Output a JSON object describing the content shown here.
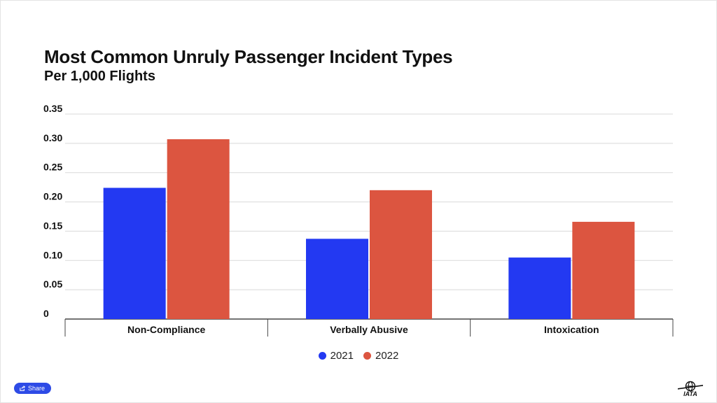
{
  "chart_data": {
    "type": "bar",
    "title": "Most Common Unruly Passenger Incident Types",
    "subtitle": "Per 1,000 Flights",
    "categories": [
      "Non-Compliance",
      "Verbally Abusive",
      "Intoxication"
    ],
    "series": [
      {
        "name": "2021",
        "color": "#2339f2",
        "values": [
          0.224,
          0.137,
          0.105
        ]
      },
      {
        "name": "2022",
        "color": "#dc5540",
        "values": [
          0.307,
          0.22,
          0.166
        ]
      }
    ],
    "ylim": [
      0,
      0.35
    ],
    "yticks": [
      "0",
      "0.05",
      "0.10",
      "0.15",
      "0.20",
      "0.25",
      "0.30",
      "0.35"
    ],
    "xlabel": "",
    "ylabel": "",
    "grid": true,
    "legend_position": "bottom-center"
  },
  "ui": {
    "share_label": "Share",
    "share_icon": "share-icon",
    "logo_text": "IATA",
    "logo_icon": "globe-icon"
  }
}
